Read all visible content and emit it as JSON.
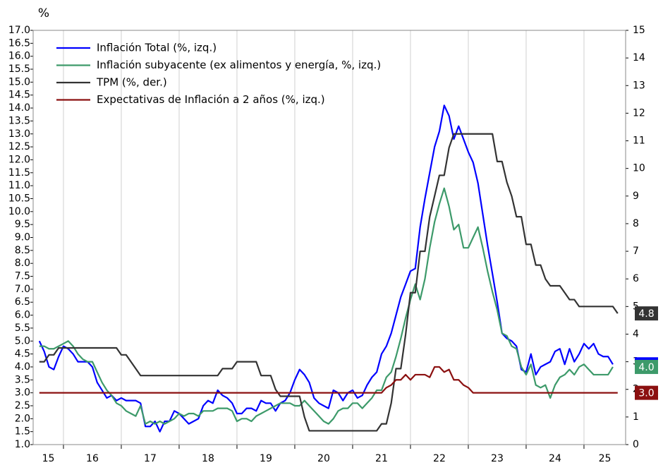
{
  "chart_data": {
    "type": "line",
    "ylabel": "%",
    "legend": "upper left",
    "grid": true,
    "xlim": [
      15.476,
      25.72
    ],
    "xticks": [
      15,
      16,
      17,
      18,
      19,
      20,
      21,
      22,
      23,
      24,
      25
    ],
    "ylim": [
      1.0,
      17.0
    ],
    "yticks": [
      {
        "value": 1.0,
        "label": "1.0"
      },
      {
        "value": 1.5,
        "label": "1.5"
      },
      {
        "value": 2.0,
        "label": "2.0"
      },
      {
        "value": 2.5,
        "label": "2.5"
      },
      {
        "value": 3.0,
        "label": "3.0"
      },
      {
        "value": 3.5,
        "label": "3.5"
      },
      {
        "value": 4.0,
        "label": "4.0"
      },
      {
        "value": 4.5,
        "label": "4.5"
      },
      {
        "value": 5.0,
        "label": "5.0"
      },
      {
        "value": 5.5,
        "label": "5.5"
      },
      {
        "value": 6.0,
        "label": "6.0"
      },
      {
        "value": 6.5,
        "label": "6.5"
      },
      {
        "value": 7.0,
        "label": "7.0"
      },
      {
        "value": 7.5,
        "label": "7.5"
      },
      {
        "value": 8.0,
        "label": "8.0"
      },
      {
        "value": 8.5,
        "label": "8.5"
      },
      {
        "value": 9.0,
        "label": "9.0"
      },
      {
        "value": 9.5,
        "label": "9.5"
      },
      {
        "value": 10.0,
        "label": "10.0"
      },
      {
        "value": 10.5,
        "label": "10.5"
      },
      {
        "value": 11.0,
        "label": "11.0"
      },
      {
        "value": 11.5,
        "label": "11.5"
      },
      {
        "value": 12.0,
        "label": "12.0"
      },
      {
        "value": 12.5,
        "label": "12.5"
      },
      {
        "value": 13.0,
        "label": "13.0"
      },
      {
        "value": 13.5,
        "label": "13.5"
      },
      {
        "value": 14.0,
        "label": "14.0"
      },
      {
        "value": 14.5,
        "label": "14.5"
      },
      {
        "value": 15.0,
        "label": "15.0"
      },
      {
        "value": 15.5,
        "label": "15.5"
      },
      {
        "value": 16.0,
        "label": "16.0"
      },
      {
        "value": 16.5,
        "label": "16.5"
      },
      {
        "value": 17.0,
        "label": "17.0"
      }
    ],
    "y2lim": [
      0,
      15
    ],
    "y2ticks": [
      0,
      1,
      2,
      3,
      4,
      5,
      6,
      7,
      8,
      9,
      10,
      11,
      12,
      13,
      14,
      15
    ],
    "x": [
      15.583,
      15.667,
      15.75,
      15.833,
      15.917,
      16,
      16.083,
      16.167,
      16.25,
      16.333,
      16.417,
      16.5,
      16.583,
      16.667,
      16.75,
      16.833,
      16.917,
      17,
      17.083,
      17.167,
      17.25,
      17.333,
      17.417,
      17.5,
      17.583,
      17.667,
      17.75,
      17.833,
      17.917,
      18,
      18.083,
      18.167,
      18.25,
      18.333,
      18.417,
      18.5,
      18.583,
      18.667,
      18.75,
      18.833,
      18.917,
      19,
      19.083,
      19.167,
      19.25,
      19.333,
      19.417,
      19.5,
      19.583,
      19.667,
      19.75,
      19.833,
      19.917,
      20,
      20.083,
      20.167,
      20.25,
      20.333,
      20.417,
      20.5,
      20.583,
      20.667,
      20.75,
      20.833,
      20.917,
      21,
      21.083,
      21.167,
      21.25,
      21.333,
      21.417,
      21.5,
      21.583,
      21.667,
      21.75,
      21.833,
      21.917,
      22,
      22.083,
      22.167,
      22.25,
      22.333,
      22.417,
      22.5,
      22.583,
      22.667,
      22.75,
      22.833,
      22.917,
      23,
      23.083,
      23.167,
      23.25,
      23.333,
      23.417,
      23.5,
      23.583,
      23.667,
      23.75,
      23.833,
      23.917,
      24,
      24.083,
      24.167,
      24.25,
      24.333,
      24.417,
      24.5,
      24.583,
      24.667,
      24.75,
      24.833,
      24.917,
      25,
      25.083,
      25.167,
      25.25,
      25.333,
      25.417,
      25.5,
      25.583
    ],
    "series": [
      {
        "name": "Inflación Total (%, izq.)",
        "color": "#0000ff",
        "axis": "y",
        "values": [
          5.0,
          4.6,
          4.0,
          3.9,
          4.4,
          4.8,
          4.7,
          4.5,
          4.2,
          4.2,
          4.2,
          4.0,
          3.4,
          3.1,
          2.8,
          2.9,
          2.7,
          2.8,
          2.7,
          2.7,
          2.7,
          2.6,
          1.7,
          1.7,
          1.9,
          1.5,
          1.9,
          1.9,
          2.3,
          2.2,
          2.0,
          1.8,
          1.9,
          2.0,
          2.5,
          2.7,
          2.6,
          3.1,
          2.9,
          2.8,
          2.6,
          2.2,
          2.2,
          2.4,
          2.4,
          2.3,
          2.7,
          2.6,
          2.6,
          2.3,
          2.6,
          2.7,
          3.0,
          3.5,
          3.9,
          3.7,
          3.4,
          2.8,
          2.6,
          2.5,
          2.4,
          3.1,
          3.0,
          2.7,
          3.0,
          3.1,
          2.8,
          2.9,
          3.3,
          3.6,
          3.8,
          4.5,
          4.8,
          5.3,
          6.0,
          6.7,
          7.2,
          7.7,
          7.8,
          9.4,
          10.5,
          11.5,
          12.5,
          13.1,
          14.1,
          13.7,
          12.8,
          13.3,
          12.8,
          12.3,
          11.9,
          11.1,
          9.9,
          8.7,
          7.6,
          6.5,
          5.3,
          5.1,
          5.0,
          4.8,
          3.9,
          3.8,
          4.5,
          3.7,
          4.0,
          4.1,
          4.2,
          4.6,
          4.7,
          4.1,
          4.7,
          4.2,
          4.5,
          4.9,
          4.7,
          4.9,
          4.5,
          4.4,
          4.4,
          4.1,
          null
        ],
        "value_labels": [
          null,
          null,
          null,
          null,
          null,
          null,
          null,
          null,
          null,
          null,
          null,
          null,
          null,
          null,
          null,
          null,
          null,
          null,
          null,
          null,
          null,
          null,
          null,
          null,
          null,
          null,
          null,
          null,
          null,
          null,
          null,
          null,
          null,
          null,
          null,
          null,
          null,
          null,
          null,
          null,
          null,
          null,
          null,
          null,
          null,
          null,
          null,
          null,
          null,
          null,
          null,
          null,
          null,
          null,
          null,
          null,
          null,
          null,
          null,
          null,
          null,
          null,
          null,
          null,
          null,
          null,
          null,
          null,
          null,
          null,
          null,
          null,
          null,
          null,
          null,
          null,
          null,
          null,
          null,
          null,
          null,
          null,
          null,
          null,
          null,
          null,
          null,
          null,
          null,
          null,
          null,
          null,
          null,
          null,
          null,
          null,
          null,
          null,
          null,
          null,
          null,
          null,
          null,
          null,
          null,
          null,
          null,
          null,
          null,
          null,
          null,
          null,
          null,
          null,
          null,
          null,
          null,
          null,
          null,
          "4.1",
          null
        ]
      },
      {
        "name": "Inflación subyacente (ex alimentos y energía, %, izq.)",
        "color": "#3d9a6a",
        "axis": "y",
        "values": [
          4.8,
          4.8,
          4.7,
          4.7,
          4.8,
          4.9,
          5.0,
          4.8,
          4.5,
          4.3,
          4.2,
          4.2,
          3.8,
          3.4,
          3.1,
          2.9,
          2.6,
          2.5,
          2.3,
          2.2,
          2.1,
          2.5,
          1.8,
          1.9,
          1.8,
          1.9,
          1.8,
          1.9,
          2.0,
          2.2,
          2.1,
          2.2,
          2.2,
          2.1,
          2.3,
          2.3,
          2.3,
          2.4,
          2.4,
          2.4,
          2.3,
          1.9,
          2.0,
          2.0,
          1.9,
          2.1,
          2.2,
          2.3,
          2.4,
          2.5,
          2.6,
          2.6,
          2.6,
          2.5,
          2.5,
          2.7,
          2.5,
          2.3,
          2.1,
          1.9,
          1.8,
          2.0,
          2.3,
          2.4,
          2.4,
          2.6,
          2.6,
          2.4,
          2.6,
          2.8,
          3.1,
          3.1,
          3.6,
          3.8,
          4.4,
          5.1,
          5.9,
          6.6,
          7.2,
          6.6,
          7.4,
          8.6,
          9.6,
          10.3,
          10.9,
          10.2,
          9.3,
          9.5,
          8.6,
          8.6,
          9.0,
          9.4,
          8.6,
          7.7,
          6.9,
          6.2,
          5.3,
          5.2,
          4.8,
          4.7,
          4.0,
          3.7,
          4.1,
          3.3,
          3.2,
          3.3,
          2.8,
          3.3,
          3.6,
          3.7,
          3.9,
          3.7,
          4.0,
          4.1,
          3.9,
          3.7,
          3.7,
          3.7,
          3.7,
          4.0,
          null
        ],
        "value_labels": [
          null,
          null,
          null,
          null,
          null,
          null,
          null,
          null,
          null,
          null,
          null,
          null,
          null,
          null,
          null,
          null,
          null,
          null,
          null,
          null,
          null,
          null,
          null,
          null,
          null,
          null,
          null,
          null,
          null,
          null,
          null,
          null,
          null,
          null,
          null,
          null,
          null,
          null,
          null,
          null,
          null,
          null,
          null,
          null,
          null,
          null,
          null,
          null,
          null,
          null,
          null,
          null,
          null,
          null,
          null,
          null,
          null,
          null,
          null,
          null,
          null,
          null,
          null,
          null,
          null,
          null,
          null,
          null,
          null,
          null,
          null,
          null,
          null,
          null,
          null,
          null,
          null,
          null,
          null,
          null,
          null,
          null,
          null,
          null,
          null,
          null,
          null,
          null,
          null,
          null,
          null,
          null,
          null,
          null,
          null,
          null,
          null,
          null,
          null,
          null,
          null,
          null,
          null,
          null,
          null,
          null,
          null,
          null,
          null,
          null,
          null,
          null,
          null,
          null,
          null,
          null,
          null,
          null,
          null,
          "4.0",
          null
        ]
      },
      {
        "name": "TPM (%, der.)",
        "color": "#333333",
        "axis": "y2",
        "values": [
          3,
          3,
          3.25,
          3.25,
          3.5,
          3.5,
          3.5,
          3.5,
          3.5,
          3.5,
          3.5,
          3.5,
          3.5,
          3.5,
          3.5,
          3.5,
          3.5,
          3.25,
          3.25,
          3,
          2.75,
          2.5,
          2.5,
          2.5,
          2.5,
          2.5,
          2.5,
          2.5,
          2.5,
          2.5,
          2.5,
          2.5,
          2.5,
          2.5,
          2.5,
          2.5,
          2.5,
          2.5,
          2.75,
          2.75,
          2.75,
          3,
          3,
          3,
          3,
          3,
          2.5,
          2.5,
          2.5,
          2,
          1.75,
          1.75,
          1.75,
          1.75,
          1.75,
          1,
          0.5,
          0.5,
          0.5,
          0.5,
          0.5,
          0.5,
          0.5,
          0.5,
          0.5,
          0.5,
          0.5,
          0.5,
          0.5,
          0.5,
          0.5,
          0.75,
          0.75,
          1.5,
          2.75,
          2.75,
          4,
          5.5,
          5.5,
          7,
          7,
          8.25,
          9,
          9.75,
          9.75,
          10.75,
          11.25,
          11.25,
          11.25,
          11.25,
          11.25,
          11.25,
          11.25,
          11.25,
          11.25,
          10.25,
          10.25,
          9.5,
          9,
          8.25,
          8.25,
          7.25,
          7.25,
          6.5,
          6.5,
          6,
          5.75,
          5.75,
          5.75,
          5.5,
          5.25,
          5.25,
          5,
          5,
          5,
          5,
          5,
          5,
          5,
          5,
          4.75
        ],
        "value_labels": [
          null,
          null,
          null,
          null,
          null,
          null,
          null,
          null,
          null,
          null,
          null,
          null,
          null,
          null,
          null,
          null,
          null,
          null,
          null,
          null,
          null,
          null,
          null,
          null,
          null,
          null,
          null,
          null,
          null,
          null,
          null,
          null,
          null,
          null,
          null,
          null,
          null,
          null,
          null,
          null,
          null,
          null,
          null,
          null,
          null,
          null,
          null,
          null,
          null,
          null,
          null,
          null,
          null,
          null,
          null,
          null,
          null,
          null,
          null,
          null,
          null,
          null,
          null,
          null,
          null,
          null,
          null,
          null,
          null,
          null,
          null,
          null,
          null,
          null,
          null,
          null,
          null,
          null,
          null,
          null,
          null,
          null,
          null,
          null,
          null,
          null,
          null,
          null,
          null,
          null,
          null,
          null,
          null,
          null,
          null,
          null,
          null,
          null,
          null,
          null,
          null,
          null,
          null,
          null,
          null,
          null,
          null,
          null,
          null,
          null,
          null,
          null,
          null,
          null,
          null,
          null,
          null,
          null,
          null,
          null,
          "4.8"
        ]
      },
      {
        "name": "Expectativas de Inflación a 2 años (%, izq.)",
        "color": "#8b1010",
        "axis": "y",
        "values": [
          3,
          3,
          3,
          3,
          3,
          3,
          3,
          3,
          3,
          3,
          3,
          3,
          3,
          3,
          3,
          3,
          3,
          3,
          3,
          3,
          3,
          3,
          3,
          3,
          3,
          3,
          3,
          3,
          3,
          3,
          3,
          3,
          3,
          3,
          3,
          3,
          3,
          3,
          3,
          3,
          3,
          3,
          3,
          3,
          3,
          3,
          3,
          3,
          3,
          3,
          3,
          3,
          3,
          3,
          3,
          3,
          3,
          3,
          3,
          3,
          3,
          3,
          3,
          3,
          3,
          3,
          3,
          3,
          3,
          3,
          3,
          3,
          3.2,
          3.3,
          3.5,
          3.5,
          3.7,
          3.5,
          3.7,
          3.7,
          3.7,
          3.6,
          4.0,
          4.0,
          3.8,
          3.9,
          3.5,
          3.5,
          3.3,
          3.2,
          3.0,
          3,
          3,
          3,
          3,
          3,
          3,
          3,
          3,
          3,
          3,
          3,
          3,
          3,
          3,
          3,
          3,
          3,
          3,
          3,
          3,
          3,
          3,
          3,
          3,
          3,
          3,
          3,
          3,
          3,
          3
        ],
        "value_labels": [
          null,
          null,
          null,
          null,
          null,
          null,
          null,
          null,
          null,
          null,
          null,
          null,
          null,
          null,
          null,
          null,
          null,
          null,
          null,
          null,
          null,
          null,
          null,
          null,
          null,
          null,
          null,
          null,
          null,
          null,
          null,
          null,
          null,
          null,
          null,
          null,
          null,
          null,
          null,
          null,
          null,
          null,
          null,
          null,
          null,
          null,
          null,
          null,
          null,
          null,
          null,
          null,
          null,
          null,
          null,
          null,
          null,
          null,
          null,
          null,
          null,
          null,
          null,
          null,
          null,
          null,
          null,
          null,
          null,
          null,
          null,
          null,
          null,
          null,
          null,
          null,
          null,
          null,
          null,
          null,
          null,
          null,
          null,
          null,
          null,
          null,
          null,
          null,
          null,
          null,
          null,
          null,
          null,
          null,
          null,
          null,
          null,
          null,
          null,
          null,
          null,
          null,
          null,
          null,
          null,
          null,
          null,
          null,
          null,
          null,
          null,
          null,
          null,
          null,
          null,
          null,
          null,
          null,
          null,
          null,
          "3.0"
        ]
      }
    ]
  }
}
